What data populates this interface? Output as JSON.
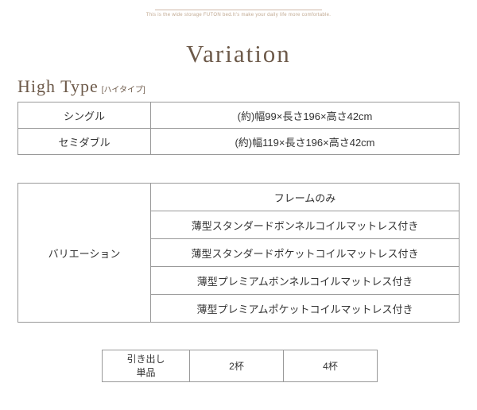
{
  "header": {
    "top_text": "This is the wide storage FUTON bed.It's make your daily life more comfortable.",
    "title": "Variation"
  },
  "high_type": {
    "en": "High Type",
    "jp": "[ハイタイプ]"
  },
  "size_table": {
    "rows": [
      {
        "name": "シングル",
        "dimensions": "(約)幅99×長さ196×高さ42cm"
      },
      {
        "name": "セミダブル",
        "dimensions": "(約)幅119×長さ196×高さ42cm"
      }
    ]
  },
  "variation_table": {
    "label": "バリエーション",
    "options": [
      "フレームのみ",
      "薄型スタンダードボンネルコイルマットレス付き",
      "薄型スタンダードポケットコイルマットレス付き",
      "薄型プレミアムボンネルコイルマットレス付き",
      "薄型プレミアムポケットコイルマットレス付き"
    ]
  },
  "drawer_table": {
    "label_line1": "引き出し",
    "label_line2": "単品",
    "values": [
      "2杯",
      "4杯"
    ]
  },
  "colors": {
    "text_brown": "#6d5a4a",
    "text_tan": "#c0a890",
    "border_gray": "#999999",
    "cell_text": "#333333",
    "background": "#ffffff",
    "topline": "#d0b8a8"
  }
}
